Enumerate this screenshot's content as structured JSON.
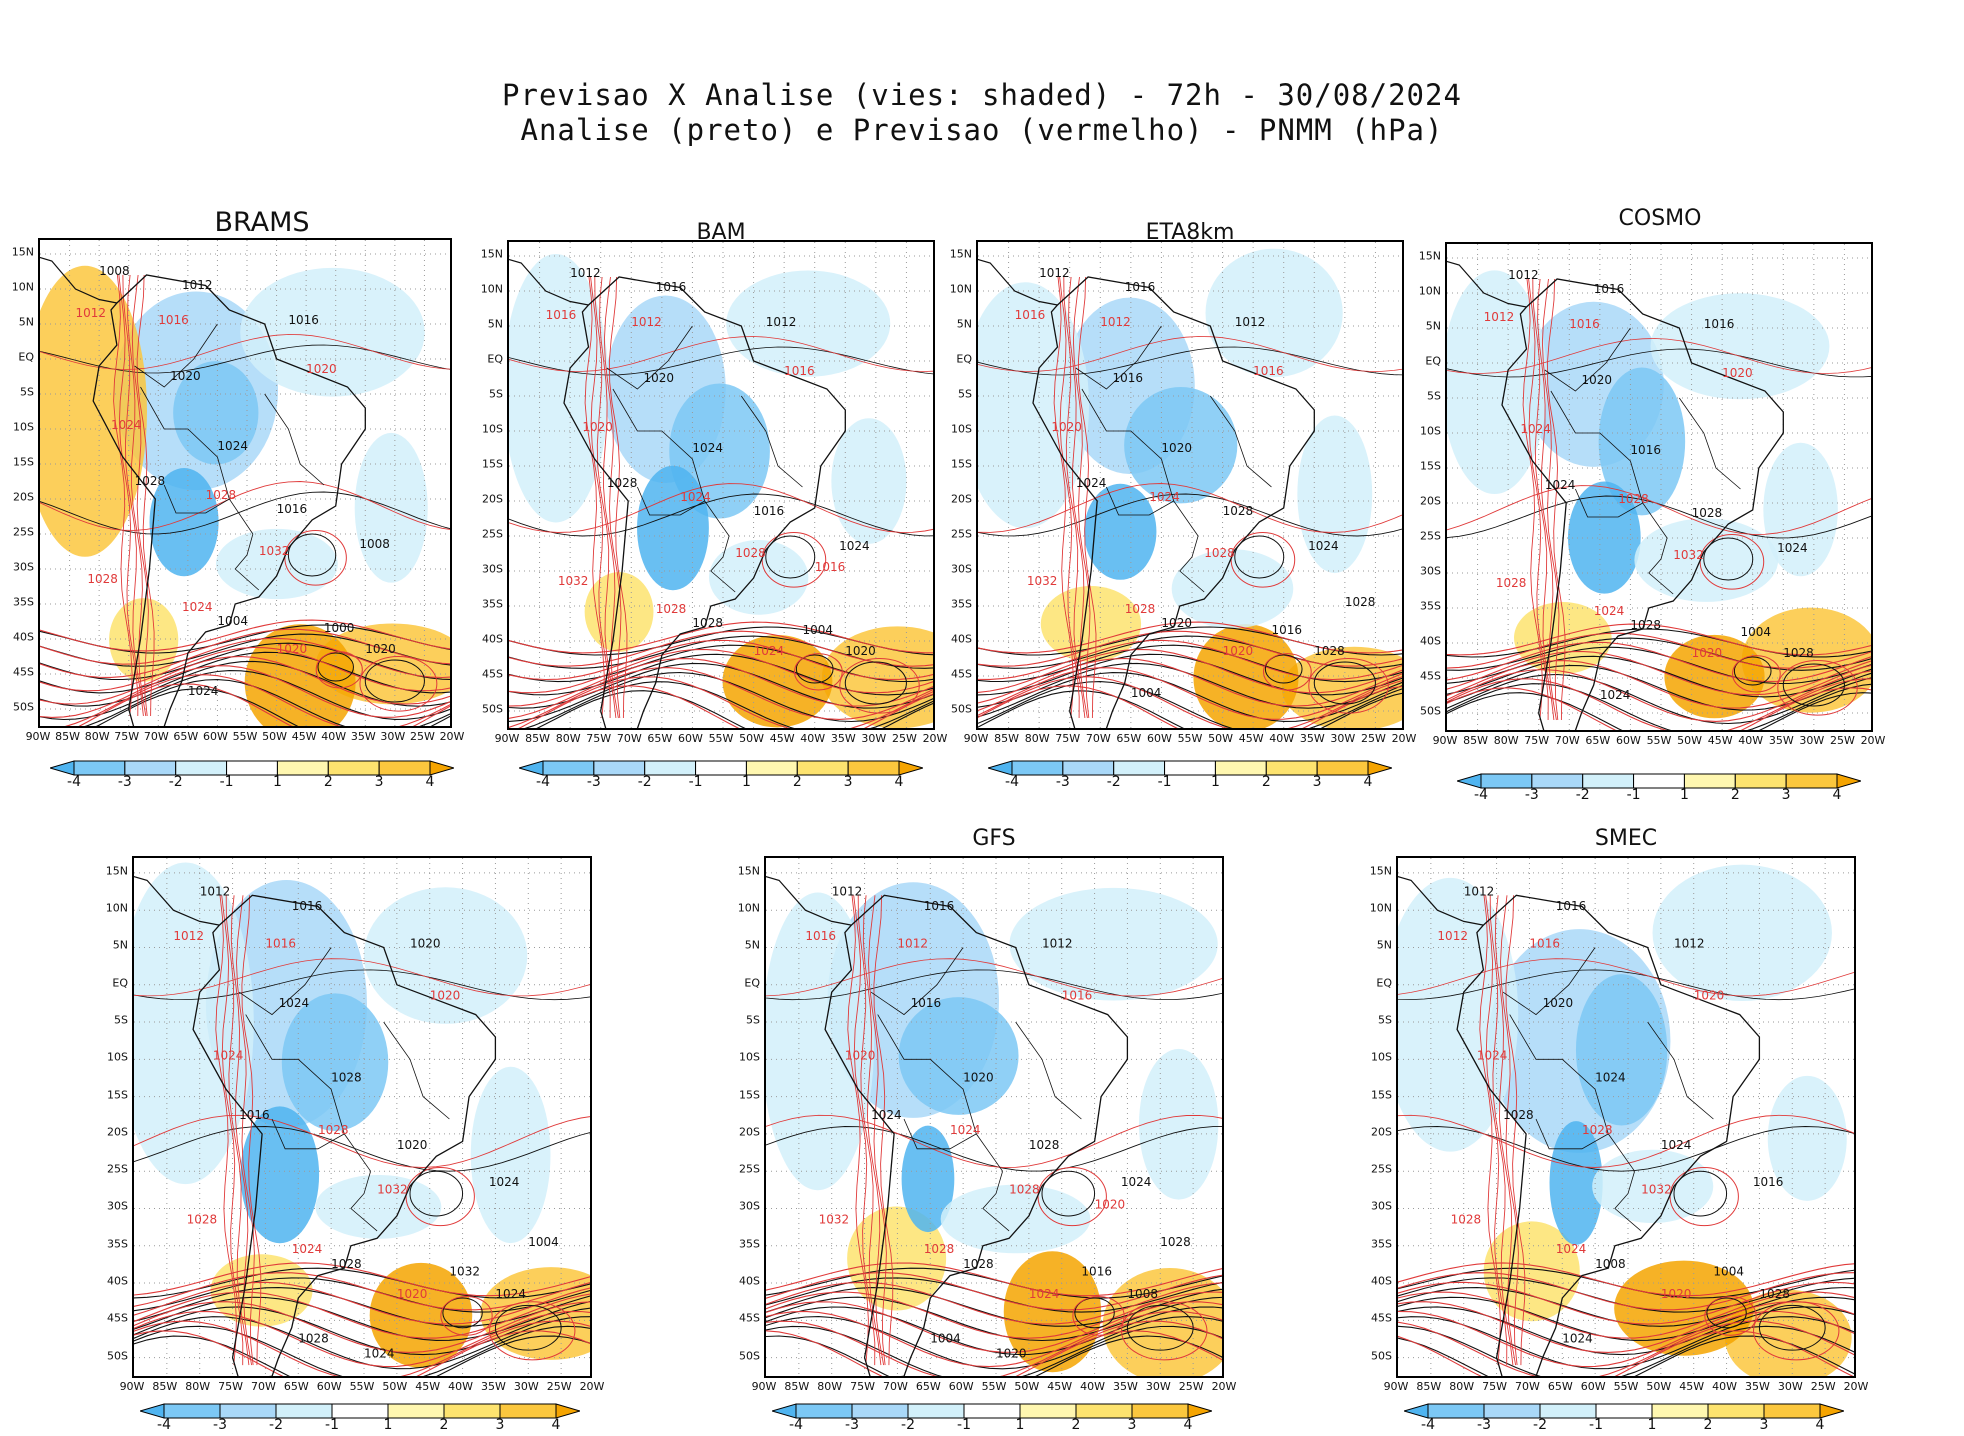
{
  "title": {
    "line1": "Previsao X Analise (vies: shaded) - 72h - 30/08/2024",
    "line2": "Analise (preto) e Previsao (vermelho) - PNMM (hPa)"
  },
  "axes": {
    "lat_labels": [
      "15N",
      "10N",
      "5N",
      "EQ",
      "5S",
      "10S",
      "15S",
      "20S",
      "25S",
      "30S",
      "35S",
      "40S",
      "45S",
      "50S"
    ],
    "lon_labels": [
      "90W",
      "85W",
      "80W",
      "75W",
      "70W",
      "65W",
      "60W",
      "55W",
      "50W",
      "45W",
      "40W",
      "35W",
      "30W",
      "25W",
      "20W"
    ]
  },
  "colorbar": {
    "labels": [
      "-4",
      "-3",
      "-2",
      "-1",
      "1",
      "2",
      "3",
      "4"
    ],
    "colors": [
      "#4fb4f0",
      "#7cc8f5",
      "#a9d8f8",
      "#d2f0fa",
      "#ffffff",
      "#fff7b0",
      "#fde36f",
      "#fbc73e",
      "#f5a400"
    ]
  },
  "colors": {
    "analysis_contour": "#111111",
    "forecast_contour": "#e03a3a",
    "coast": "#111111",
    "grid": "#9a9a9a"
  },
  "panels": [
    {
      "name": "BRAMS",
      "title": "BRAMS",
      "labels_black": [
        "1008",
        "1012",
        "1016",
        "1020",
        "1024",
        "1028",
        "1016",
        "1008",
        "1004",
        "1000",
        "1020",
        "1024"
      ],
      "labels_red": [
        "1012",
        "1016",
        "1020",
        "1024",
        "1028",
        "1032",
        "1028",
        "1024",
        "1020"
      ]
    },
    {
      "name": "BAM",
      "title": "BAM",
      "labels_black": [
        "1012",
        "1016",
        "1012",
        "1020",
        "1024",
        "1028",
        "1016",
        "1024",
        "1028",
        "1004",
        "1020"
      ],
      "labels_red": [
        "1016",
        "1012",
        "1016",
        "1020",
        "1024",
        "1028",
        "1032",
        "1028",
        "1024",
        "1016"
      ]
    },
    {
      "name": "ETA8km",
      "title": "ETA8km",
      "labels_black": [
        "1012",
        "1016",
        "1012",
        "1016",
        "1020",
        "1024",
        "1028",
        "1024",
        "1020",
        "1016",
        "1028",
        "1004",
        "1028"
      ],
      "labels_red": [
        "1016",
        "1012",
        "1016",
        "1020",
        "1024",
        "1028",
        "1032",
        "1028",
        "1020"
      ]
    },
    {
      "name": "COSMO",
      "title": "COSMO",
      "labels_black": [
        "1012",
        "1016",
        "1016",
        "1020",
        "1016",
        "1024",
        "1028",
        "1024",
        "1028",
        "1004",
        "1028",
        "1024"
      ],
      "labels_red": [
        "1012",
        "1016",
        "1020",
        "1024",
        "1028",
        "1032",
        "1028",
        "1024",
        "1020"
      ]
    },
    {
      "name": "BRAMS-2",
      "title": "",
      "labels_black": [
        "1012",
        "1016",
        "1020",
        "1024",
        "1028",
        "1016",
        "1020",
        "1024",
        "1028",
        "1032",
        "1024",
        "1028",
        "1004",
        "1024"
      ],
      "labels_red": [
        "1012",
        "1016",
        "1020",
        "1024",
        "1028",
        "1032",
        "1028",
        "1024",
        "1020"
      ]
    },
    {
      "name": "GFS",
      "title": "GFS",
      "labels_black": [
        "1012",
        "1016",
        "1012",
        "1016",
        "1020",
        "1024",
        "1028",
        "1024",
        "1028",
        "1016",
        "1008",
        "1004",
        "1028",
        "1020"
      ],
      "labels_red": [
        "1016",
        "1012",
        "1016",
        "1020",
        "1024",
        "1028",
        "1032",
        "1028",
        "1024",
        "1020"
      ]
    },
    {
      "name": "SMEC",
      "title": "SMEC",
      "labels_black": [
        "1012",
        "1016",
        "1012",
        "1020",
        "1024",
        "1028",
        "1024",
        "1016",
        "1008",
        "1004",
        "1028",
        "1024"
      ],
      "labels_red": [
        "1012",
        "1016",
        "1020",
        "1024",
        "1028",
        "1032",
        "1028",
        "1024",
        "1020"
      ]
    }
  ]
}
